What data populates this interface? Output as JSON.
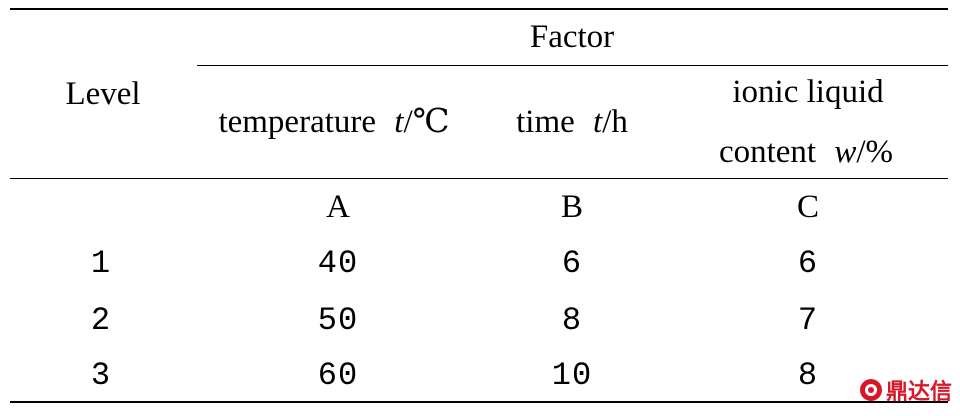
{
  "table": {
    "header": {
      "level_label": "Level",
      "factor_label": "Factor",
      "columns": [
        {
          "name": "temperature",
          "variable": "t",
          "unit": "℃"
        },
        {
          "name": "time",
          "variable": "t",
          "unit": "h"
        },
        {
          "line1": "ionic liquid",
          "name": "content",
          "variable": "w",
          "unit": "%"
        }
      ],
      "codes": [
        "A",
        "B",
        "C"
      ]
    },
    "rows": [
      {
        "level": "1",
        "values": [
          "40",
          "6",
          "6"
        ]
      },
      {
        "level": "2",
        "values": [
          "50",
          "8",
          "7"
        ]
      },
      {
        "level": "3",
        "values": [
          "60",
          "10",
          "8"
        ]
      }
    ]
  },
  "watermark": {
    "text": "鼎达信",
    "logo_icon": "ring-logo-icon",
    "color": "#d7182a"
  }
}
